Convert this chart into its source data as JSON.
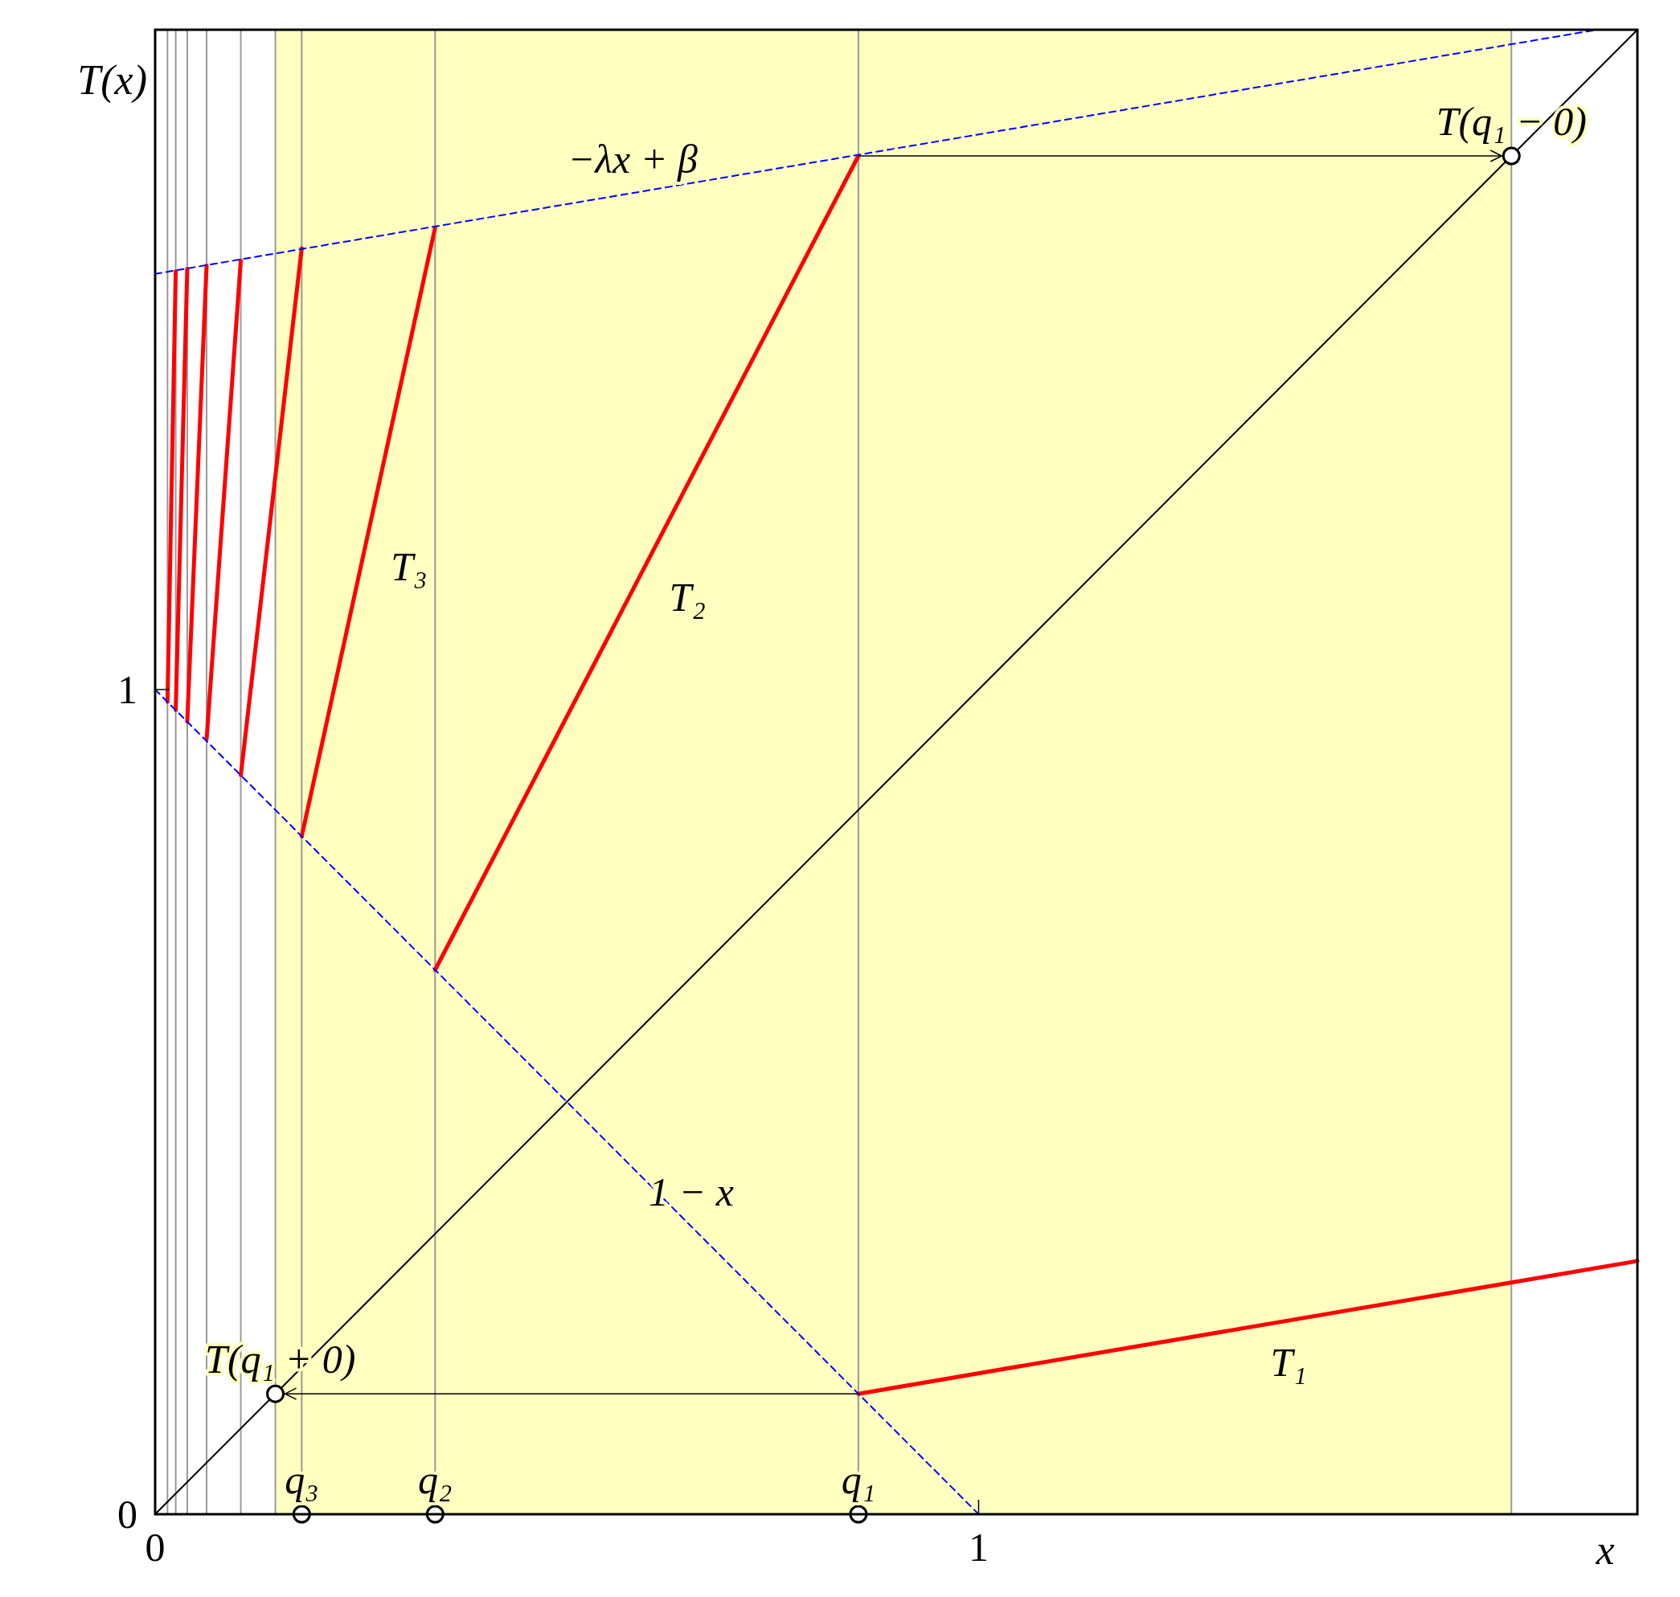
{
  "chart_data": {
    "type": "line",
    "xlabel": "x",
    "ylabel": "T(x)",
    "xlim": [
      0,
      1.8
    ],
    "ylim": [
      0,
      1.8
    ],
    "xticks": [
      0,
      1
    ],
    "yticks": [
      0,
      1
    ],
    "grid": false,
    "series": [
      {
        "name": "T₁",
        "color": "#ff0000",
        "x": [
          0.854,
          1.8
        ],
        "values": [
          0.146,
          0.307
        ]
      },
      {
        "name": "T₂",
        "color": "#ff0000",
        "x": [
          0.34,
          0.854
        ],
        "values": [
          0.66,
          1.647
        ]
      },
      {
        "name": "T₃",
        "color": "#ff0000",
        "x": [
          0.178,
          0.34
        ],
        "values": [
          0.822,
          1.56
        ]
      },
      {
        "color": "#ff0000",
        "x": [
          0.104,
          0.178
        ],
        "values": [
          0.896,
          1.535
        ]
      },
      {
        "color": "#ff0000",
        "x": [
          0.0625,
          0.104
        ],
        "values": [
          0.94,
          1.52
        ]
      },
      {
        "color": "#ff0000",
        "x": [
          0.039,
          0.0625
        ],
        "values": [
          0.961,
          1.514
        ]
      },
      {
        "color": "#ff0000",
        "x": [
          0.025,
          0.039
        ],
        "values": [
          0.975,
          1.51
        ]
      },
      {
        "color": "#ff0000",
        "x": [
          0.015,
          0.025
        ],
        "values": [
          0.985,
          1.507
        ]
      },
      {
        "color": "#0000ff",
        "line_style": "dashed",
        "x": [
          0,
          1.751
        ],
        "values": [
          1.504,
          1.8
        ]
      },
      {
        "color": "#0000ff",
        "line_style": "dashed",
        "x": [
          0,
          1
        ],
        "values": [
          1,
          0
        ]
      },
      {
        "color": "#000000",
        "x": [
          0,
          1.8
        ],
        "values": [
          0,
          1.8
        ]
      },
      {
        "type": "scatter",
        "marker": "circle",
        "color": "#000000",
        "x": [
          0.854,
          0.34,
          0.178,
          1.647,
          0.146
        ],
        "values": [
          0,
          0,
          0,
          1.647,
          0.146
        ]
      }
    ],
    "bands": [
      {
        "axis": "x",
        "from": 0.146,
        "to": 1.647,
        "color": "#ffffc0"
      }
    ],
    "ref_lines": [
      {
        "axis": "x",
        "value": 0.854,
        "color": "#999999"
      },
      {
        "axis": "x",
        "value": 0.34,
        "color": "#999999"
      },
      {
        "axis": "x",
        "value": 0.178,
        "color": "#999999"
      },
      {
        "axis": "x",
        "value": 0.146,
        "color": "#999999"
      },
      {
        "axis": "x",
        "value": 0.104,
        "color": "#999999"
      },
      {
        "axis": "x",
        "value": 0.0625,
        "color": "#999999"
      },
      {
        "axis": "x",
        "value": 0.039,
        "color": "#999999"
      },
      {
        "axis": "x",
        "value": 0.025,
        "color": "#999999"
      },
      {
        "axis": "x",
        "value": 0.015,
        "color": "#999999"
      },
      {
        "axis": "x",
        "value": 1.647,
        "color": "#999999"
      }
    ],
    "annotations": [
      {
        "text": "−λx + β",
        "x": 0.58,
        "y": 1.601
      },
      {
        "text": "1 − x",
        "x": 0.651,
        "y": 0.349
      },
      {
        "text": "T(q₁ − 0)",
        "x": 1.647,
        "y": 1.647
      },
      {
        "text": "T(q₁ + 0)",
        "x": 0.152,
        "y": 0.146
      },
      {
        "text": "q₁",
        "x": 0.854,
        "y": 0
      },
      {
        "text": "q₂",
        "x": 0.34,
        "y": 0
      },
      {
        "text": "q₃",
        "x": 0.178,
        "y": 0
      }
    ]
  }
}
